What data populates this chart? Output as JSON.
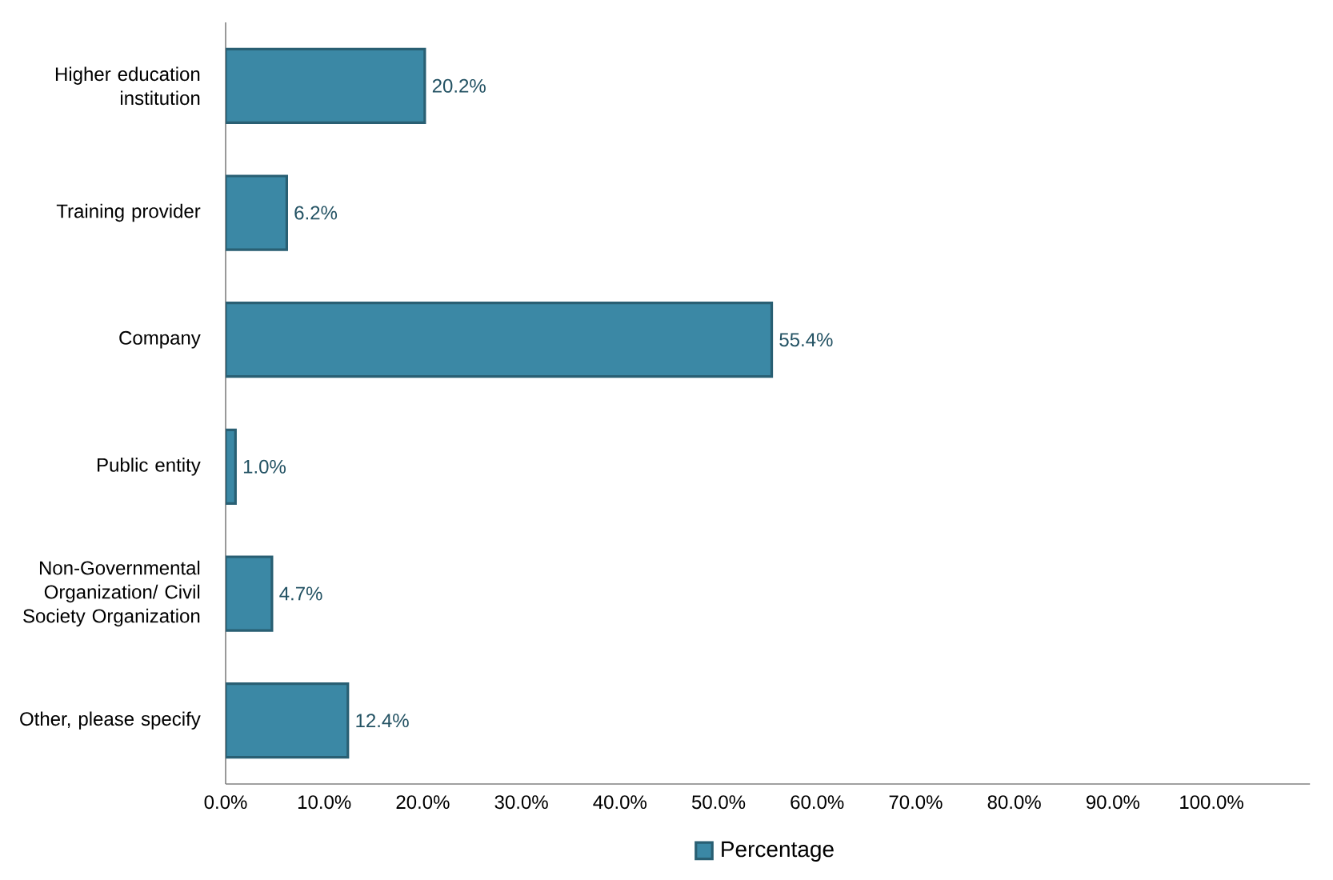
{
  "chart_data": {
    "type": "bar",
    "orientation": "horizontal",
    "categories": [
      "Higher education institution",
      "Training provider",
      "Company",
      "Public entity",
      "Non-Governmental Organization/ Civil Society Organization",
      "Other, please specify"
    ],
    "series": [
      {
        "name": "Percentage",
        "color": "#3b88a5",
        "values": [
          20.2,
          6.2,
          55.4,
          1.0,
          4.7,
          12.4
        ]
      }
    ],
    "value_labels": [
      "20.2%",
      "6.2%",
      "55.4%",
      "1.0%",
      "4.7%",
      "12.4%"
    ],
    "xlim": [
      0,
      110
    ],
    "xticks": [
      {
        "value": 0,
        "label": "0.0%"
      },
      {
        "value": 10,
        "label": "10.0%"
      },
      {
        "value": 20,
        "label": "20.0%"
      },
      {
        "value": 30,
        "label": "30.0%"
      },
      {
        "value": 40,
        "label": "40.0%"
      },
      {
        "value": 50,
        "label": "50.0%"
      },
      {
        "value": 60,
        "label": "60.0%"
      },
      {
        "value": 70,
        "label": "70.0%"
      },
      {
        "value": 80,
        "label": "80.0%"
      },
      {
        "value": 90,
        "label": "90.0%"
      },
      {
        "value": 100,
        "label": "100.0%"
      }
    ],
    "legend": "bottom",
    "grid": false
  }
}
